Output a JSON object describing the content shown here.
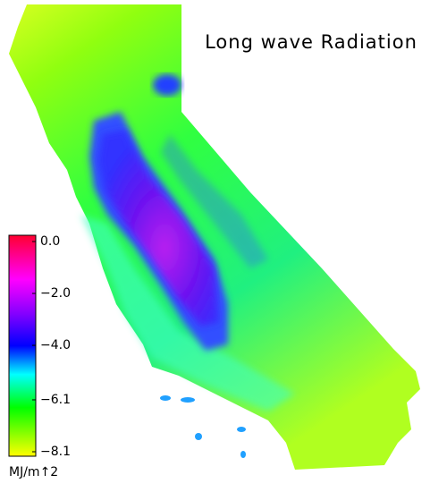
{
  "title": "Long wave Radiation",
  "colorbar": {
    "lim": [
      -8.1,
      0.0
    ],
    "ticks": [
      {
        "value": 0.0,
        "label": "0.0"
      },
      {
        "value": -2.0,
        "label": "−2.0"
      },
      {
        "value": -4.0,
        "label": "−4.0"
      },
      {
        "value": -6.1,
        "label": "−6.1"
      },
      {
        "value": -8.1,
        "label": "−8.1"
      }
    ],
    "unit": "MJ/m↑2"
  }
}
